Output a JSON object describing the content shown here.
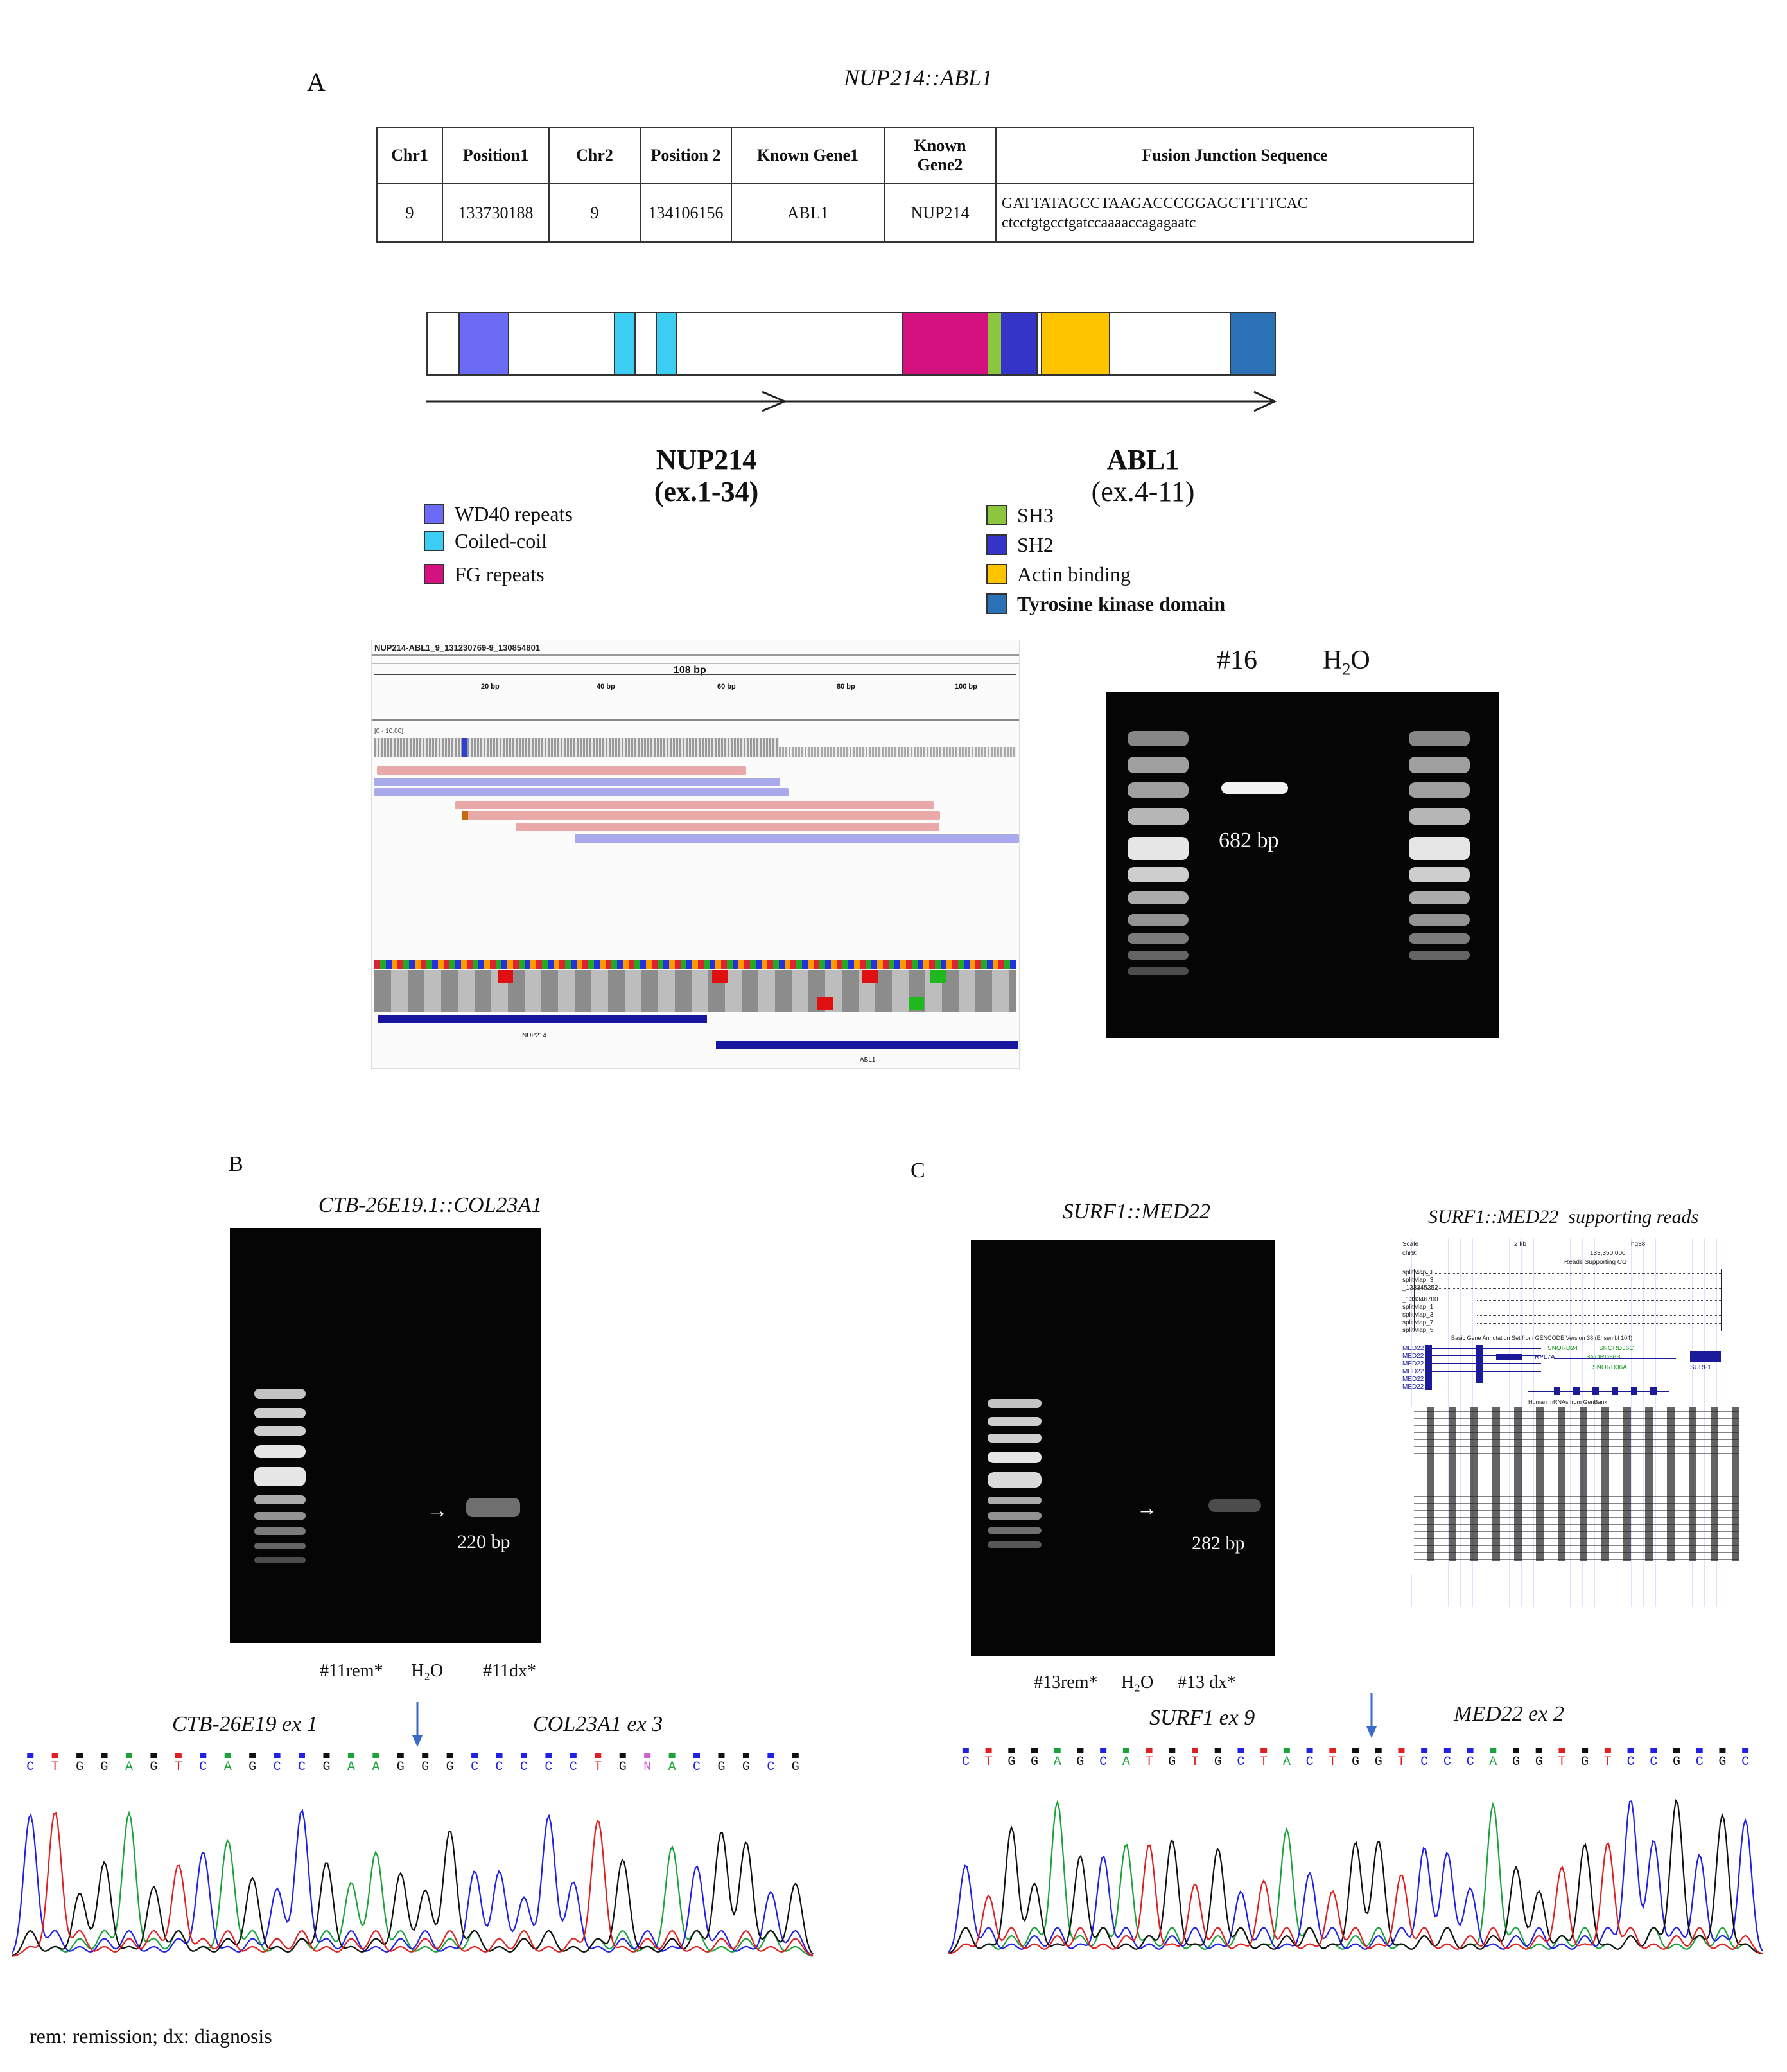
{
  "panel_a": {
    "letter": "A",
    "title": "NUP214::ABL1",
    "table": {
      "headers": [
        "Chr1",
        "Position1",
        "Chr2",
        "Position 2",
        "Known Gene1",
        "Known Gene2",
        "Fusion Junction Sequence"
      ],
      "row": [
        "9",
        "133730188",
        "9",
        "134106156",
        "ABL1",
        "NUP214"
      ],
      "sequence_upper": "GATTATAGCCTAAGACCCGGAGCTTTTCAC",
      "sequence_lower": "ctcctgtgcctgatccaaaaccagagaatc"
    },
    "domain_colors": {
      "wd40": "#6b6bf5",
      "coiled_coil": "#3ccdf2",
      "fg": "#d3127f",
      "sh3": "#8cc63f",
      "sh2": "#3434c8",
      "actin": "#ffc400",
      "tk": "#2a72b5"
    },
    "gene1": {
      "name": "NUP214",
      "exons": "(ex.1-34)"
    },
    "gene2": {
      "name": "ABL1",
      "exons": "(ex.4-11)"
    },
    "legend_left": [
      "WD40 repeats",
      "Coiled-coil",
      "FG repeats"
    ],
    "legend_right": [
      "SH3",
      "SH2",
      "Actin binding",
      "Tyrosine kinase domain"
    ],
    "igv": {
      "header": "NUP214-ABL1_9_131230769-9_130854801",
      "span": "108 bp",
      "ticks": [
        "20 bp",
        "40 bp",
        "60 bp",
        "80 bp",
        "100 bp"
      ],
      "range": "[0 - 10.00]",
      "gene_left": "NUP214",
      "gene_right": "ABL1"
    },
    "gel": {
      "lane1": "#16",
      "lane2_main": "H",
      "lane2_sub": "2",
      "lane2_tail": "O",
      "band_size": "682 bp"
    }
  },
  "panel_b": {
    "letter": "B",
    "title": "CTB-26E19.1::COL23A1",
    "band_size": "220 bp",
    "lanes": [
      "#11rem*",
      "H₂O",
      "#11dx*"
    ],
    "seq_left": "CTB-26E19 ex 1",
    "seq_right": "COL23A1 ex 3",
    "bases": "C T G G A G T C A G C C G A A G G G C C C C C T G N A C G G C G"
  },
  "panel_c": {
    "letter": "C",
    "title": "SURF1::MED22",
    "band_size": "282 bp",
    "lanes": [
      "#13rem*",
      "H₂O",
      "#13 dx*"
    ],
    "browser_title": "SURF1::MED22  supporting reads",
    "browser": {
      "scale": "Scale",
      "chr": "chr9:",
      "scale_value": "2 kb",
      "assembly": "hg38",
      "coordinate": "133,350,000",
      "reads_label": "Reads Supporting CG",
      "track_names": [
        "splitMap_1",
        "splitMap_3",
        "_133345252",
        "_133346700",
        "splitMap_1",
        "splitMap_3",
        "splitMap_7",
        "splitMap_5"
      ],
      "gencode_label": "Basic Gene Annotation Set from GENCODE Version 38 (Ensembl 104)",
      "gene_labels": [
        "MED22",
        "MED22",
        "MED22",
        "MED22",
        "MED22",
        "MED22"
      ],
      "snord_labels": [
        "SNORD24",
        "SNORD36C",
        "SNORD36B",
        "SNORD36A"
      ],
      "rpl7a": "RPL7A",
      "surf1": "SURF1",
      "mrna_label": "Human mRNAs from GenBank"
    },
    "seq_left": "SURF1 ex 9",
    "seq_right": "MED22 ex 2",
    "bases": "C T G G A G C A T G T G C T A C T G G T C C C A G G T G T C C G C G C"
  },
  "footnote": "rem: remission; dx: diagnosis",
  "base_colors": {
    "A": "#1aa33b",
    "C": "#2020e8",
    "G": "#111111",
    "T": "#e02020",
    "N": "#d060d0"
  }
}
